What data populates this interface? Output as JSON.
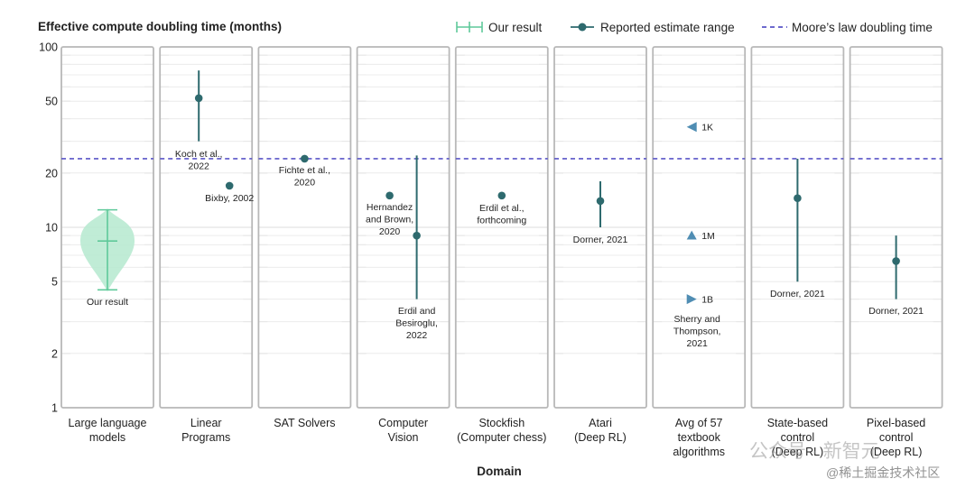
{
  "chart_data": {
    "type": "scatter",
    "title": "Effective compute doubling time (months)",
    "xlabel": "Domain",
    "ylabel": "",
    "yscale": "log",
    "ylim": [
      1,
      100
    ],
    "ytick_labels": [
      "100",
      "50",
      "20",
      "10",
      "5",
      "2",
      "1"
    ],
    "yticks": [
      100,
      50,
      20,
      10,
      5,
      2,
      1
    ],
    "grid": true,
    "legend_position": "top-right",
    "legend": [
      {
        "label": "Our result",
        "marker": "violin-errorbar"
      },
      {
        "label": "Reported estimate range",
        "marker": "point-range"
      },
      {
        "label": "Moore’s law doubling time",
        "marker": "dashed-line"
      }
    ],
    "reference_line": {
      "name": "Moore’s law doubling time",
      "y": 24
    },
    "panels": [
      {
        "category": [
          "Large language",
          "models"
        ],
        "our_result": {
          "median": 8.4,
          "low": 4.5,
          "high": 12.5,
          "violin_low": 4.4,
          "violin_high": 12.7
        },
        "points": [],
        "labels": [
          {
            "lines": [
              "Our result"
            ]
          }
        ]
      },
      {
        "category": [
          "Linear",
          "Programs"
        ],
        "points": [
          {
            "value": 52,
            "low": 30,
            "high": 74,
            "label": [
              "Koch et al.,",
              "2022"
            ]
          },
          {
            "value": 17,
            "label": [
              "Bixby, 2002"
            ]
          }
        ]
      },
      {
        "category": [
          "SAT Solvers"
        ],
        "points": [
          {
            "value": 24,
            "label": [
              "Fichte et al.,",
              "2020"
            ]
          }
        ]
      },
      {
        "category": [
          "Computer",
          "Vision"
        ],
        "points": [
          {
            "value": 15,
            "label": [
              "Hernandez",
              "and Brown,",
              "2020"
            ]
          },
          {
            "value": 9,
            "low": 4,
            "high": 25,
            "label": [
              "Erdil and",
              "Besiroglu,",
              "2022"
            ]
          }
        ]
      },
      {
        "category": [
          "Stockfish",
          "(Computer chess)"
        ],
        "points": [
          {
            "value": 15,
            "label": [
              "Erdil et al.,",
              "forthcoming"
            ]
          }
        ]
      },
      {
        "category": [
          "Atari",
          "(Deep RL)"
        ],
        "points": [
          {
            "value": 14,
            "low": 10,
            "high": 18,
            "label": [
              "Dorner, 2021"
            ]
          }
        ]
      },
      {
        "category": [
          "Avg of 57",
          "textbook",
          "algorithms"
        ],
        "points": [
          {
            "value": 36,
            "marker": "triangle-left",
            "label": [
              "1K"
            ]
          },
          {
            "value": 9,
            "marker": "triangle-up",
            "label": [
              "1M"
            ]
          },
          {
            "value": 4,
            "marker": "triangle-right",
            "label": [
              "1B"
            ]
          }
        ],
        "labels": [
          {
            "lines": [
              "Sherry and",
              "Thompson,",
              "2021"
            ]
          }
        ]
      },
      {
        "category": [
          "State-based",
          "control",
          "(Deep RL)"
        ],
        "points": [
          {
            "value": 14.5,
            "low": 5,
            "high": 24,
            "label": [
              "Dorner, 2021"
            ]
          }
        ]
      },
      {
        "category": [
          "Pixel-based",
          "control",
          "(Deep RL)"
        ],
        "points": [
          {
            "value": 6.5,
            "low": 4,
            "high": 9,
            "label": [
              "Dorner, 2021"
            ]
          }
        ]
      }
    ],
    "colors": {
      "point": "#2e6a6e",
      "violin_fill": "#b9ead2",
      "violin_line": "#5fc99a",
      "moore": "#5a55c8",
      "panel_border": "#b8b8b8",
      "grid": "#c8c8c8",
      "triangle": "#4f8db3"
    }
  },
  "watermark": {
    "line1": "公众号 · 新智元",
    "line2": "@稀土掘金技术社区"
  }
}
